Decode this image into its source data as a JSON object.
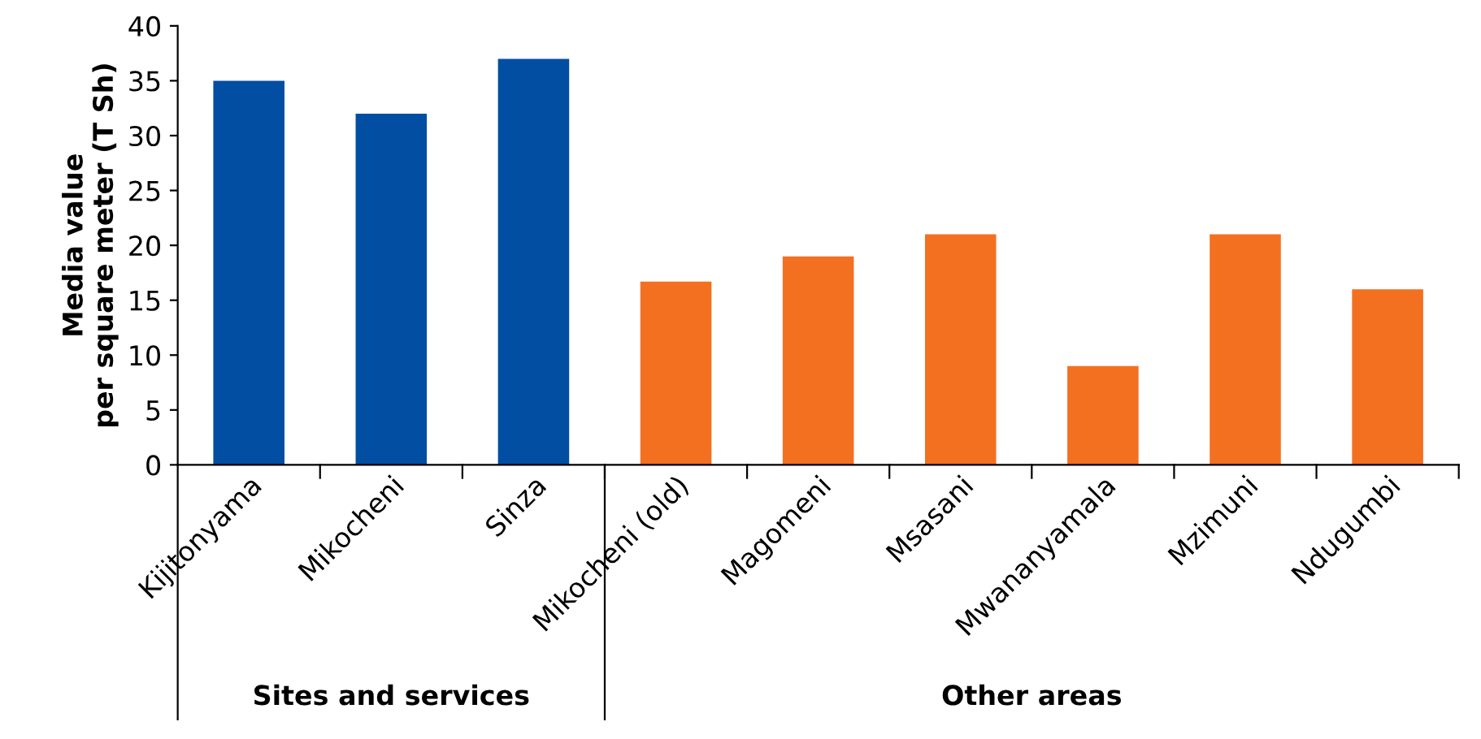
{
  "chart_data": {
    "type": "bar",
    "ylabel": "Media value\nper square meter (T Sh)",
    "categories": [
      "Kijitonyama",
      "Mikocheni",
      "Sinza",
      "Mikocheni (old)",
      "Magomeni",
      "Msasani",
      "Mwananyamala",
      "Mzimuni",
      "Ndugumbi"
    ],
    "values": [
      35,
      32,
      37,
      16.7,
      19,
      21,
      9,
      21,
      16
    ],
    "colors": [
      "#024ea2",
      "#024ea2",
      "#024ea2",
      "#f37021",
      "#f37021",
      "#f37021",
      "#f37021",
      "#f37021",
      "#f37021"
    ],
    "ylim": [
      0,
      40
    ],
    "yticks": [
      0,
      5,
      10,
      15,
      20,
      25,
      30,
      35,
      40
    ],
    "grid": false,
    "legend": false,
    "annotations": [
      "Sites and services",
      "Other areas"
    ]
  }
}
